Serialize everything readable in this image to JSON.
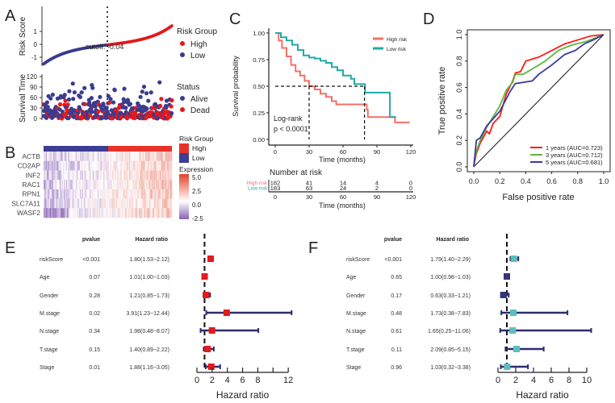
{
  "panel_labels": [
    "A",
    "B",
    "C",
    "D",
    "E",
    "F"
  ],
  "chart_data": [
    {
      "type": "scatter",
      "panel": "A",
      "ylabel": "Risk Score",
      "yticks": [
        "-1",
        "0",
        "1"
      ],
      "ytick_values": [
        -1,
        0,
        1
      ],
      "cutoff_label": "cutoff: -0.04",
      "cutoff": -0.04,
      "n_low": 183,
      "n_high": 182,
      "legend_title": "Risk Group",
      "legend": [
        "High",
        "Low"
      ],
      "colors": {
        "High": "#e41a1c",
        "Low": "#3b3b8f"
      }
    },
    {
      "type": "scatter",
      "panel": "A",
      "ylabel": "Survival Time",
      "yticks": [
        "0",
        "30",
        "60",
        "90",
        "120"
      ],
      "ytick_values": [
        0,
        30,
        60,
        90,
        120
      ],
      "legend_title": "Status",
      "legend": [
        "Alive",
        "Dead"
      ],
      "colors": {
        "Alive": "#3b3b8f",
        "Dead": "#e41a1c"
      }
    },
    {
      "type": "heatmap",
      "panel": "B",
      "rows": [
        "ACTB",
        "CD2AP",
        "INF2",
        "RAC1",
        "RPN1",
        "SLC7A11",
        "WASF2"
      ],
      "group_legend_title": "Risk Group",
      "group_legend": [
        "High",
        "Low"
      ],
      "expr_legend_title": "Expression",
      "expr_ticks": [
        "5.0",
        "2.5",
        "0.0",
        "-2.5"
      ],
      "expr_range": [
        -2.5,
        5.0
      ],
      "colors": {
        "High": "#e8322a",
        "Low": "#3d3d94",
        "max": "#e0432b",
        "mid": "#ffffff",
        "min": "#8a62b5"
      }
    },
    {
      "type": "line",
      "panel": "C",
      "ylabel": "Survival probability",
      "xlabel": "Time (months)",
      "xticks": [
        "0",
        "30",
        "60",
        "90",
        "120"
      ],
      "xtick_values": [
        0,
        30,
        60,
        90,
        120
      ],
      "yticks": [
        "0.00",
        "0.25",
        "0.50",
        "0.75",
        "1.00"
      ],
      "ytick_values": [
        0,
        0.25,
        0.5,
        0.75,
        1
      ],
      "annotation": [
        "Log-rank",
        "p < 0.0001"
      ],
      "median_survival": {
        "High risk": 30,
        "Low risk": 79
      },
      "series": [
        {
          "name": "High risk",
          "color": "#f07167",
          "points": [
            [
              0,
              1
            ],
            [
              3,
              0.93
            ],
            [
              6,
              0.86
            ],
            [
              10,
              0.78
            ],
            [
              14,
              0.7
            ],
            [
              18,
              0.64
            ],
            [
              22,
              0.6
            ],
            [
              26,
              0.55
            ],
            [
              30,
              0.5
            ],
            [
              35,
              0.47
            ],
            [
              40,
              0.43
            ],
            [
              45,
              0.4
            ],
            [
              50,
              0.36
            ],
            [
              54,
              0.33
            ],
            [
              80,
              0.33
            ],
            [
              81,
              0.28
            ],
            [
              82,
              0.21
            ],
            [
              105,
              0.21
            ],
            [
              106,
              0.16
            ],
            [
              119,
              0.16
            ]
          ]
        },
        {
          "name": "Low risk",
          "color": "#22aaa8",
          "points": [
            [
              0,
              1
            ],
            [
              5,
              0.96
            ],
            [
              10,
              0.93
            ],
            [
              15,
              0.89
            ],
            [
              20,
              0.84
            ],
            [
              25,
              0.79
            ],
            [
              30,
              0.77
            ],
            [
              35,
              0.76
            ],
            [
              40,
              0.74
            ],
            [
              45,
              0.72
            ],
            [
              50,
              0.68
            ],
            [
              55,
              0.65
            ],
            [
              60,
              0.6
            ],
            [
              67,
              0.57
            ],
            [
              70,
              0.52
            ],
            [
              79,
              0.52
            ],
            [
              79.5,
              0.44
            ],
            [
              101,
              0.44
            ],
            [
              101.5,
              0.21
            ],
            [
              107,
              0.21
            ]
          ]
        }
      ],
      "risk_table": {
        "title": "Number at risk",
        "xlabel": "Time (months)",
        "rows": [
          {
            "name": "High risk",
            "color": "#f07167",
            "values": [
              "182",
              "41",
              "14",
              "4",
              "0"
            ]
          },
          {
            "name": "Low risk",
            "color": "#22aaa8",
            "values": [
              "183",
              "63",
              "24",
              "2",
              "0"
            ]
          }
        ]
      }
    },
    {
      "type": "line",
      "panel": "D",
      "xlabel": "False positive rate",
      "ylabel": "True positive rate",
      "xticks": [
        "0.0",
        "0.2",
        "0.4",
        "0.6",
        "0.8",
        "1.0"
      ],
      "yticks": [
        "0.0",
        "0.2",
        "0.4",
        "0.6",
        "0.8",
        "1.0"
      ],
      "xlim": [
        0,
        1
      ],
      "ylim": [
        0,
        1
      ],
      "legend_position": "bottom-right",
      "series": [
        {
          "name": "1 years (AUC=0.723)",
          "color": "#ff1a1a",
          "points": [
            [
              0,
              0
            ],
            [
              0.02,
              0.1
            ],
            [
              0.05,
              0.18
            ],
            [
              0.1,
              0.27
            ],
            [
              0.12,
              0.25
            ],
            [
              0.15,
              0.33
            ],
            [
              0.2,
              0.38
            ],
            [
              0.25,
              0.55
            ],
            [
              0.3,
              0.65
            ],
            [
              0.32,
              0.71
            ],
            [
              0.36,
              0.72
            ],
            [
              0.4,
              0.8
            ],
            [
              0.5,
              0.83
            ],
            [
              0.6,
              0.88
            ],
            [
              0.7,
              0.93
            ],
            [
              0.8,
              0.96
            ],
            [
              0.9,
              0.99
            ],
            [
              1,
              1
            ]
          ]
        },
        {
          "name": "3 years (AUC=0.712)",
          "color": "#5cb83a",
          "points": [
            [
              0,
              0
            ],
            [
              0.02,
              0.12
            ],
            [
              0.05,
              0.2
            ],
            [
              0.1,
              0.3
            ],
            [
              0.2,
              0.46
            ],
            [
              0.25,
              0.58
            ],
            [
              0.3,
              0.64
            ],
            [
              0.32,
              0.7
            ],
            [
              0.38,
              0.7
            ],
            [
              0.45,
              0.74
            ],
            [
              0.55,
              0.8
            ],
            [
              0.65,
              0.88
            ],
            [
              0.75,
              0.92
            ],
            [
              0.87,
              0.95
            ],
            [
              1,
              1
            ]
          ]
        },
        {
          "name": "5 years (AUC=0.681)",
          "color": "#3a3aa0",
          "points": [
            [
              0,
              0
            ],
            [
              0.02,
              0.2
            ],
            [
              0.05,
              0.22
            ],
            [
              0.1,
              0.31
            ],
            [
              0.2,
              0.42
            ],
            [
              0.28,
              0.57
            ],
            [
              0.32,
              0.63
            ],
            [
              0.45,
              0.65
            ],
            [
              0.5,
              0.7
            ],
            [
              0.6,
              0.77
            ],
            [
              0.7,
              0.85
            ],
            [
              0.78,
              0.88
            ],
            [
              0.85,
              0.93
            ],
            [
              0.92,
              0.96
            ],
            [
              1,
              1
            ]
          ]
        }
      ]
    },
    {
      "type": "forest",
      "panel": "E",
      "headers": {
        "pvalue": "pvalue",
        "hr": "Hazard ratio"
      },
      "xlabel": "Hazard ratio",
      "xticks": [
        "0",
        "2",
        "4",
        "6",
        "8",
        "12"
      ],
      "xtick_values": [
        0,
        2,
        4,
        6,
        8,
        12
      ],
      "xlim": [
        0,
        12
      ],
      "rows": [
        {
          "name": "riskScore",
          "pvalue": "<0.001",
          "hr_text": "1.80(1.53−2.12)",
          "hr": 1.8,
          "lo": 1.53,
          "hi": 2.12,
          "color": "#e41a1c"
        },
        {
          "name": "Age",
          "pvalue": "0.07",
          "hr_text": "1.01(1.00−1.03)",
          "hr": 1.01,
          "lo": 1.0,
          "hi": 1.03,
          "color": "#e41a1c"
        },
        {
          "name": "Gender",
          "pvalue": "0.28",
          "hr_text": "1.21(0.85−1.73)",
          "hr": 1.21,
          "lo": 0.85,
          "hi": 1.73,
          "color": "#e41a1c"
        },
        {
          "name": "M.stage",
          "pvalue": "0.02",
          "hr_text": "3.91(1.23−12.44)",
          "hr": 3.91,
          "lo": 1.23,
          "hi": 12.44,
          "color": "#e41a1c"
        },
        {
          "name": "N.stage",
          "pvalue": "0.34",
          "hr_text": "1.98(0.48−8.07)",
          "hr": 1.98,
          "lo": 0.48,
          "hi": 8.07,
          "color": "#e41a1c"
        },
        {
          "name": "T.stage",
          "pvalue": "0.15",
          "hr_text": "1.40(0.89−2.22)",
          "hr": 1.4,
          "lo": 0.89,
          "hi": 2.22,
          "color": "#e41a1c"
        },
        {
          "name": "Stage",
          "pvalue": "0.01",
          "hr_text": "1.88(1.16−3.05)",
          "hr": 1.88,
          "lo": 1.16,
          "hi": 3.05,
          "color": "#e41a1c"
        }
      ]
    },
    {
      "type": "forest",
      "panel": "F",
      "headers": {
        "pvalue": "pvalue",
        "hr": "Hazard ratio"
      },
      "xlabel": "Hazard ratio",
      "xticks": [
        "0",
        "2",
        "4",
        "6",
        "8",
        "10"
      ],
      "xtick_values": [
        0,
        2,
        4,
        6,
        8,
        10
      ],
      "xlim": [
        0,
        10
      ],
      "rows": [
        {
          "name": "riskScore",
          "pvalue": "<0.001",
          "hr_text": "1.79(1.40−2.29)",
          "hr": 1.79,
          "lo": 1.4,
          "hi": 2.29,
          "color": "#5cbfbd"
        },
        {
          "name": "Age",
          "pvalue": "0.65",
          "hr_text": "1.00(0.98−1.03)",
          "hr": 1.0,
          "lo": 0.98,
          "hi": 1.03,
          "color": "#34347e"
        },
        {
          "name": "Gender",
          "pvalue": "0.17",
          "hr_text": "0.63(0.33−1.21)",
          "hr": 0.63,
          "lo": 0.33,
          "hi": 1.21,
          "color": "#34347e"
        },
        {
          "name": "M.stage",
          "pvalue": "0.48",
          "hr_text": "1.73(0.38−7.83)",
          "hr": 1.73,
          "lo": 0.38,
          "hi": 7.83,
          "color": "#5cbfbd"
        },
        {
          "name": "N.stage",
          "pvalue": "0.61",
          "hr_text": "1.65(0.25−11.06)",
          "hr": 1.65,
          "lo": 0.25,
          "hi": 11.06,
          "color": "#5cbfbd"
        },
        {
          "name": "T.stage",
          "pvalue": "0.11",
          "hr_text": "2.09(0.85−5.15)",
          "hr": 2.09,
          "lo": 0.85,
          "hi": 5.15,
          "color": "#5cbfbd"
        },
        {
          "name": "Stage",
          "pvalue": "0.96",
          "hr_text": "1.03(0.32−3.38)",
          "hr": 1.03,
          "lo": 0.32,
          "hi": 3.38,
          "color": "#5cbfbd"
        }
      ]
    }
  ]
}
